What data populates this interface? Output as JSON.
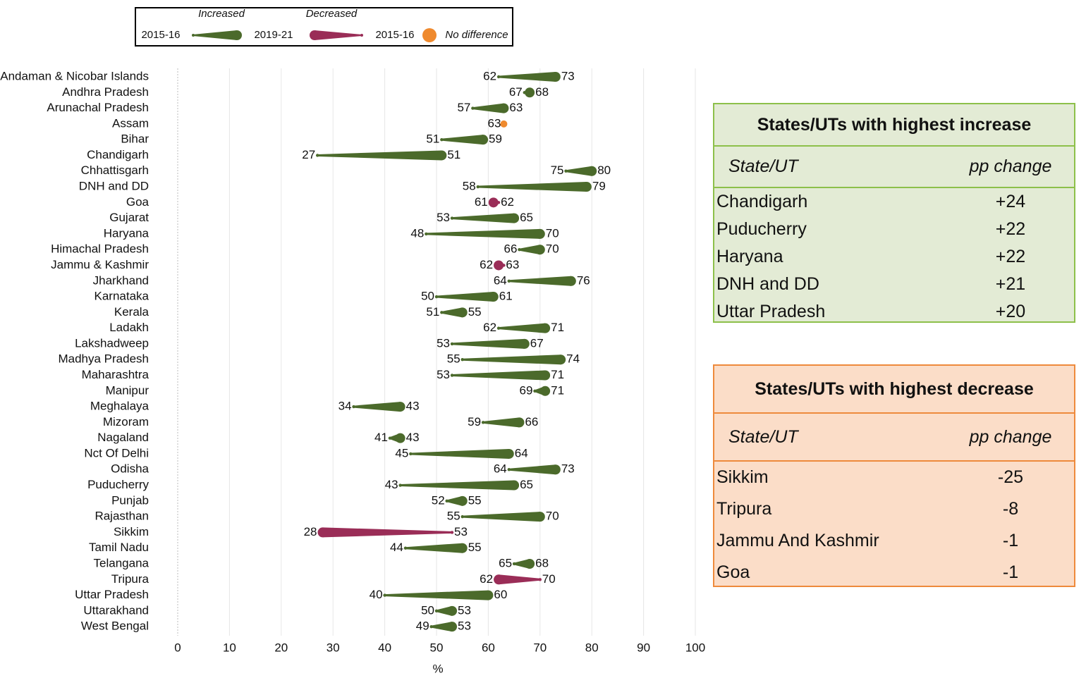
{
  "chart_data": {
    "type": "dumbbell",
    "categories": [
      "Andaman & Nicobar Islands",
      "Andhra Pradesh",
      "Arunachal Pradesh",
      "Assam",
      "Bihar",
      "Chandigarh",
      "Chhattisgarh",
      "DNH and DD",
      "Goa",
      "Gujarat",
      "Haryana",
      "Himachal Pradesh",
      "Jammu & Kashmir",
      "Jharkhand",
      "Karnataka",
      "Kerala",
      "Ladakh",
      "Lakshadweep",
      "Madhya Pradesh",
      "Maharashtra",
      "Manipur",
      "Meghalaya",
      "Mizoram",
      "Nagaland",
      "Nct Of Delhi",
      "Odisha",
      "Puducherry",
      "Punjab",
      "Rajasthan",
      "Sikkim",
      "Tamil Nadu",
      "Telangana",
      "Tripura",
      "Uttar Pradesh",
      "Uttarakhand",
      "West Bengal"
    ],
    "series": [
      {
        "name": "2015-16",
        "values": [
          62,
          67,
          57,
          63,
          51,
          27,
          75,
          58,
          62,
          53,
          48,
          66,
          63,
          64,
          50,
          51,
          62,
          53,
          55,
          53,
          69,
          34,
          59,
          41,
          45,
          64,
          43,
          52,
          55,
          53,
          44,
          65,
          70,
          40,
          50,
          49
        ]
      },
      {
        "name": "2019-21",
        "values": [
          73,
          68,
          63,
          63,
          59,
          51,
          80,
          79,
          61,
          65,
          70,
          70,
          62,
          76,
          61,
          55,
          71,
          67,
          74,
          71,
          71,
          43,
          66,
          43,
          64,
          73,
          65,
          55,
          70,
          28,
          55,
          68,
          62,
          60,
          53,
          53
        ]
      }
    ],
    "legend": {
      "increased": "Increased",
      "decreased": "Decreased",
      "no_difference": "No difference"
    },
    "colors": {
      "increased": "#4b6a2b",
      "decreased": "#9a2d57",
      "no_difference": "#ef8a2e"
    },
    "xlabel": "%",
    "xlim": [
      0,
      100
    ],
    "xticks": [
      0,
      10,
      20,
      30,
      40,
      50,
      60,
      70,
      80,
      90,
      100
    ],
    "grid": true
  },
  "tables": [
    {
      "title": "States/UTs with highest increase",
      "columns": [
        "State/UT",
        "pp change"
      ],
      "rows": [
        [
          "Chandigarh",
          "+24"
        ],
        [
          "Puducherry",
          "+22"
        ],
        [
          "Haryana",
          "+22"
        ],
        [
          "DNH and DD",
          "+21"
        ],
        [
          "Uttar Pradesh",
          "+20"
        ]
      ]
    },
    {
      "title": "States/UTs with highest decrease",
      "columns": [
        "State/UT",
        "pp change"
      ],
      "rows": [
        [
          "Sikkim",
          "-25"
        ],
        [
          "Tripura",
          "-8"
        ],
        [
          "Jammu And Kashmir",
          "-1"
        ],
        [
          "Goa",
          "-1"
        ]
      ]
    }
  ]
}
